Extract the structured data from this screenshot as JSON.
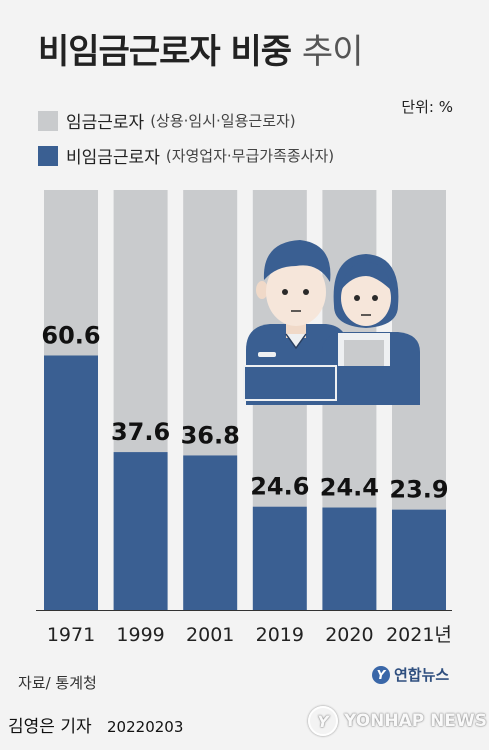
{
  "title_bold": "비임금근로자 비중",
  "title_light": "추이",
  "unit_label": "단위: %",
  "legend": {
    "wage": {
      "label": "임금근로자",
      "detail": "(상용·임시·일용근로자)",
      "color": "#c9cbcd"
    },
    "nonwage": {
      "label": "비임금근로자",
      "detail": "(자영업자·무급가족종사자)",
      "color": "#3a5f92"
    }
  },
  "source": "자료/ 통계청",
  "reporter": "김영은 기자",
  "date": "20220203",
  "logo_text": "연합뉴스",
  "watermark_text": "YONHAP NEWS",
  "chart_data": {
    "type": "bar",
    "stacked": true,
    "categories": [
      "1971",
      "1999",
      "2001",
      "2019",
      "2020",
      "2021년"
    ],
    "series": [
      {
        "name": "비임금근로자",
        "values": [
          60.6,
          37.6,
          36.8,
          24.6,
          24.4,
          23.9
        ],
        "color": "#3a5f92"
      },
      {
        "name": "임금근로자",
        "values": [
          39.4,
          62.4,
          63.2,
          75.4,
          75.6,
          76.1
        ],
        "color": "#c9cbcd"
      }
    ],
    "data_labels": [
      "60.6",
      "37.6",
      "36.8",
      "24.6",
      "24.4",
      "23.9"
    ],
    "ylim": [
      0,
      100
    ],
    "grid": false,
    "legend_position": "top-left"
  }
}
